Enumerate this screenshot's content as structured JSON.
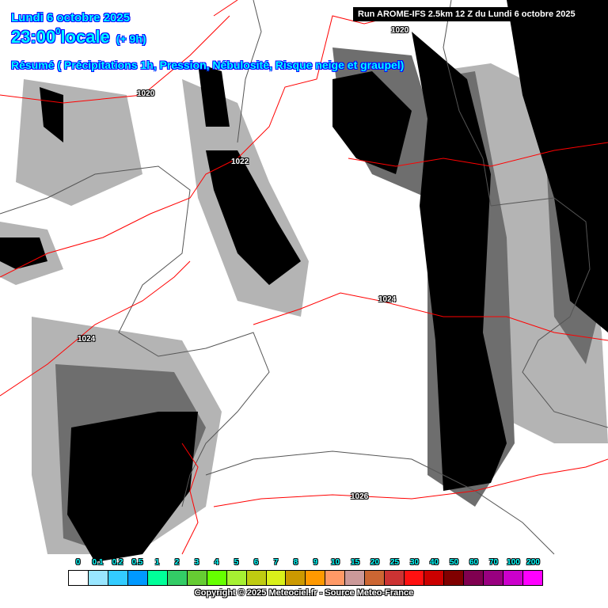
{
  "header": {
    "date": "Lundi 6 octobre 2025",
    "time": "23:00",
    "time_sup": "0",
    "time_suffix": "locale",
    "step": "(+ 9h)",
    "summary": "Résumé ( Précipitations 1h, Pression, Nébulosité, Risque neige et graupel)",
    "run": "Run AROME-IFS 2.5km 12 Z du Lundi 6 octobre 2025"
  },
  "isobars": [
    "1020",
    "1020",
    "1022",
    "1024",
    "1024",
    "1026"
  ],
  "legend": {
    "labels": [
      "0",
      "0.1",
      "0.2",
      "0.5",
      "1",
      "2",
      "3",
      "4",
      "5",
      "6",
      "7",
      "8",
      "9",
      "10",
      "15",
      "20",
      "25",
      "30",
      "40",
      "50",
      "60",
      "70",
      "100",
      "200"
    ],
    "colors": [
      "#ffffff",
      "#99e6ff",
      "#33ccff",
      "#0099ff",
      "#00ff99",
      "#33cc66",
      "#66cc33",
      "#66ff00",
      "#a6f032",
      "#bfcc11",
      "#d9f01a",
      "#cc9900",
      "#ff9900",
      "#ff9966",
      "#cc9999",
      "#cc6633",
      "#cc3333",
      "#ff1111",
      "#cc0000",
      "#800000",
      "#800050",
      "#990080",
      "#cc00cc",
      "#ff00ff"
    ]
  },
  "copyright": "Copyright © 2025 Meteociel.fr - Source Meteo-France"
}
